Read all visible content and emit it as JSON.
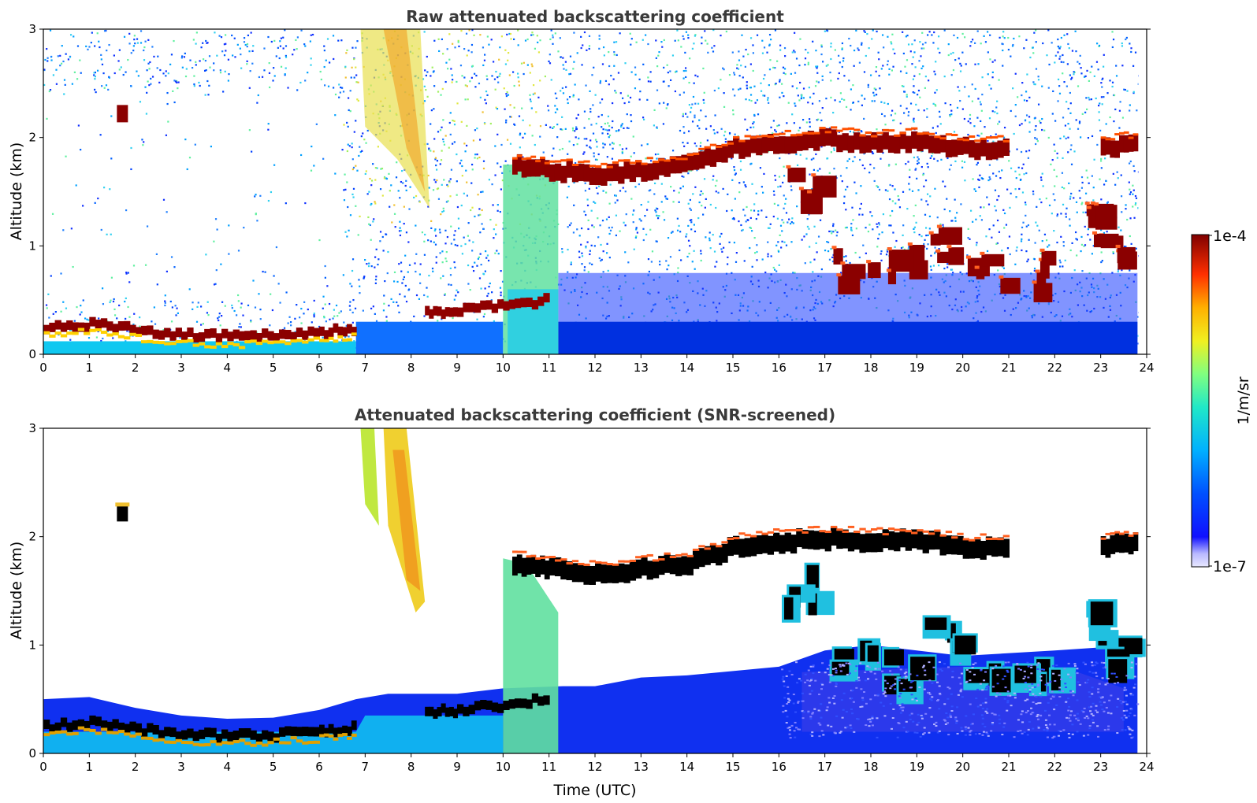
{
  "chart_data": [
    {
      "type": "heatmap",
      "title": "Raw attenuated backscattering coefficient",
      "xlabel": "",
      "ylabel": "Altitude (km)",
      "xlim": [
        0,
        24
      ],
      "ylim": [
        0,
        3
      ],
      "xticks": [
        "0",
        "1",
        "2",
        "3",
        "4",
        "5",
        "6",
        "7",
        "8",
        "9",
        "10",
        "11",
        "12",
        "13",
        "14",
        "15",
        "16",
        "17",
        "18",
        "19",
        "20",
        "21",
        "22",
        "23",
        "24"
      ],
      "yticks": [
        "0",
        "1",
        "2",
        "3"
      ],
      "colorscale": "jet",
      "scale": "log",
      "grid": false,
      "features": [
        {
          "name": "boundary layer",
          "t": [
            0,
            1,
            2,
            3,
            4,
            5,
            6,
            6.8
          ],
          "z": [
            0.25,
            0.28,
            0.22,
            0.18,
            0.16,
            0.17,
            0.2,
            0.24
          ],
          "level": "high"
        },
        {
          "name": "residual layer",
          "t": [
            8.3,
            9,
            10,
            11
          ],
          "z": [
            0.38,
            0.4,
            0.45,
            0.5
          ],
          "level": "high"
        },
        {
          "name": "cloud layer",
          "t": [
            10.2,
            11,
            12,
            13,
            14,
            15,
            16,
            17,
            18,
            19,
            20,
            21,
            22,
            23,
            23.8
          ],
          "z": [
            1.75,
            1.7,
            1.65,
            1.7,
            1.75,
            1.9,
            1.95,
            1.98,
            1.95,
            1.97,
            1.9,
            1.9,
            null,
            1.9,
            1.95
          ],
          "level": "high"
        },
        {
          "name": "lower clouds",
          "t": [
            16.5,
            17.5,
            18.5,
            19.5,
            20.5,
            21.5,
            22.5,
            23.2
          ],
          "z": [
            1.6,
            0.9,
            0.85,
            1.1,
            0.85,
            0.8,
            1.25,
            1.0
          ],
          "level": "high"
        },
        {
          "name": "aerosol plume",
          "t": [
            7,
            7.5,
            8,
            8.3
          ],
          "z": [
            2.6,
            2.3,
            2.0,
            1.6
          ],
          "level": "mid"
        }
      ]
    },
    {
      "type": "heatmap",
      "title": "Attenuated backscattering coefficient (SNR-screened)",
      "xlabel": "Time (UTC)",
      "ylabel": "Altitude (km)",
      "xlim": [
        0,
        24
      ],
      "ylim": [
        0,
        3
      ],
      "xticks": [
        "0",
        "1",
        "2",
        "3",
        "4",
        "5",
        "6",
        "7",
        "8",
        "9",
        "10",
        "11",
        "12",
        "13",
        "14",
        "15",
        "16",
        "17",
        "18",
        "19",
        "20",
        "21",
        "22",
        "23",
        "24"
      ],
      "yticks": [
        "0",
        "1",
        "2",
        "3"
      ],
      "colorscale": "jet",
      "scale": "log",
      "grid": false,
      "colorbar": {
        "label": "1/m/sr",
        "max_label": "1e-4",
        "min_label": "1e-7",
        "range": [
          1e-07,
          0.0001
        ]
      }
    }
  ],
  "colors": {
    "title_text": "#3a3a3a",
    "colormap_low": "#00008f",
    "colormap_high": "#800000"
  }
}
